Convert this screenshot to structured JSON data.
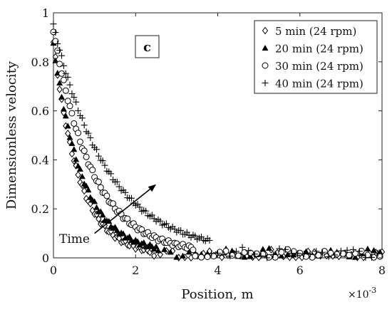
{
  "chart_data": {
    "type": "scatter",
    "title": "",
    "panel_label": "c",
    "xlabel": "Position, m",
    "ylabel": "Dimensionless velocity",
    "x_exponent_label": "×10",
    "x_exponent_power": "-3",
    "xlim": [
      0,
      8
    ],
    "ylim": [
      0,
      1
    ],
    "x_ticks": [
      0,
      2,
      4,
      6,
      8
    ],
    "y_ticks": [
      0,
      0.2,
      0.4,
      0.6,
      0.8,
      1
    ],
    "x_tick_labels": [
      "0",
      "2",
      "4",
      "6",
      "8"
    ],
    "y_tick_labels": [
      "0",
      "0.2",
      "0.4",
      "0.6",
      "0.8",
      "1"
    ],
    "x_unit_scale": "1e-3",
    "grid": false,
    "legend_position": "top-right",
    "annotation": {
      "text": "Time",
      "arrow_from": [
        1.0,
        0.1
      ],
      "arrow_to": [
        2.5,
        0.3
      ]
    },
    "series": [
      {
        "name": "5 min (24 rpm)",
        "marker": "diamond",
        "curve": {
          "y0": 0.88,
          "tau": 0.62,
          "plateau": 0.01,
          "cutoff": 2.4,
          "step": 0.05
        }
      },
      {
        "name": "20 min (24 rpm)",
        "marker": "triangle",
        "curve": {
          "y0": 0.87,
          "tau": 0.7,
          "plateau": 0.018,
          "cutoff": 2.5,
          "step": 0.05
        }
      },
      {
        "name": "30 min (24 rpm)",
        "marker": "circle",
        "curve": {
          "y0": 0.93,
          "tau": 0.95,
          "plateau": 0.015,
          "cutoff": 3.4,
          "step": 0.05
        }
      },
      {
        "name": "40 min (24 rpm)",
        "marker": "plus",
        "curve": {
          "y0": 0.95,
          "tau": 1.3,
          "plateau": 0.02,
          "cutoff": 3.8,
          "step": 0.05
        }
      }
    ]
  }
}
